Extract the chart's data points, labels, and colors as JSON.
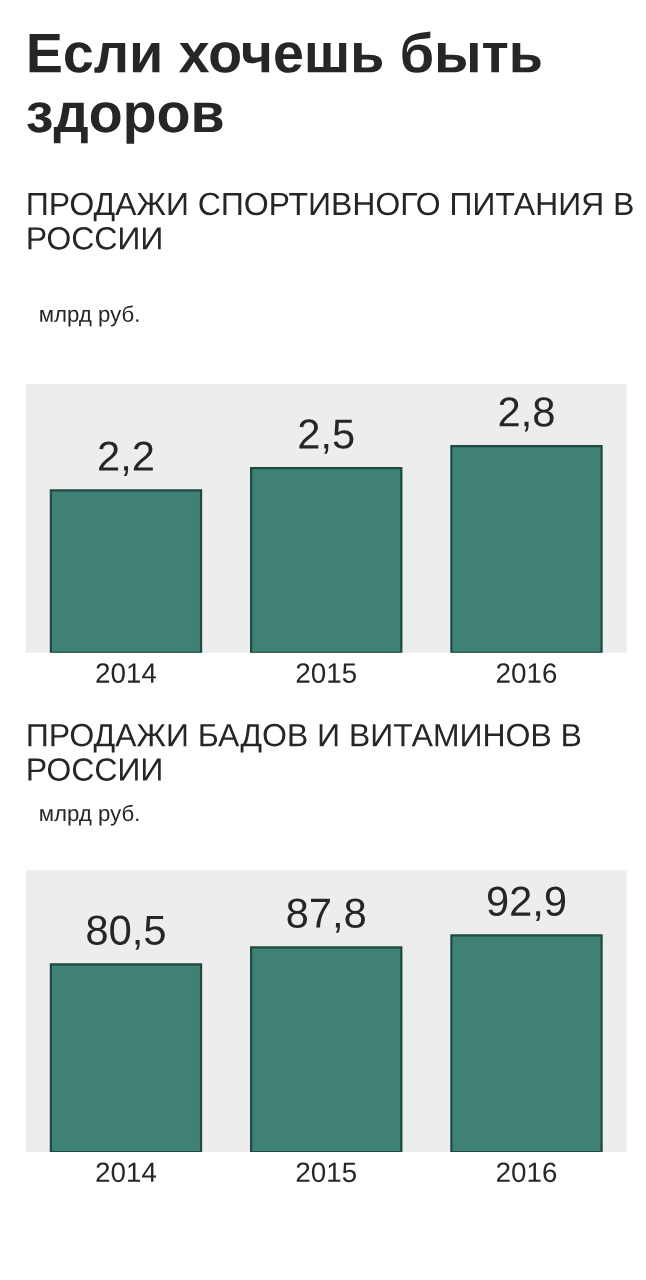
{
  "chart_data": [
    {
      "type": "bar",
      "title": "Если хочешь быть здоров",
      "subtitle": "ПРОДАЖИ СПОРТИВНОГО ПИТАНИЯ В РОССИИ",
      "ylabel": "млрд руб.",
      "categories": [
        "2014",
        "2015",
        "2016"
      ],
      "values": [
        2.2,
        2.5,
        2.8
      ],
      "value_labels": [
        "2,2",
        "2,5",
        "2,8"
      ],
      "color": "#3f8275",
      "tick_labels": "x",
      "legend": false
    },
    {
      "type": "bar",
      "title": "ПРОДАЖИ БАДОВ И ВИТАМИНОВ В РОССИИ",
      "ylabel": "млрд руб.",
      "categories": [
        "2014",
        "2015",
        "2016"
      ],
      "values": [
        80.5,
        87.8,
        92.9
      ],
      "value_labels": [
        "80,5",
        "87,8",
        "92,9"
      ],
      "color": "#3f8275",
      "tick_labels": "x",
      "legend": false
    }
  ]
}
